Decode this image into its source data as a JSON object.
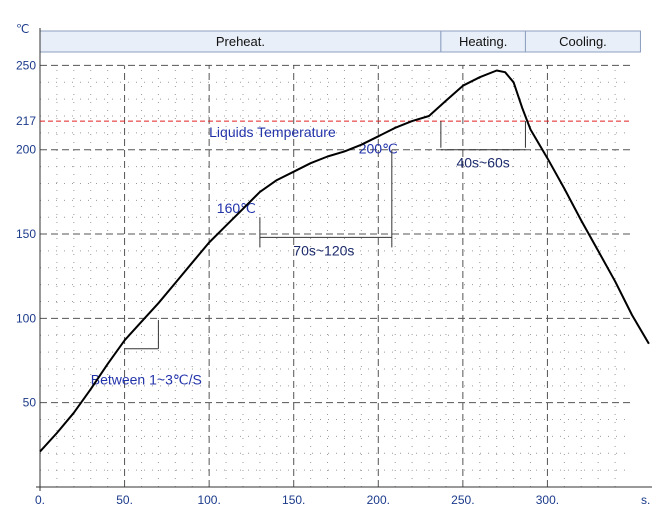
{
  "chart_data": {
    "type": "line",
    "title": "",
    "xlabel": "",
    "ylabel": "",
    "x_unit": "s.",
    "y_unit": "℃",
    "xlim": [
      0,
      360
    ],
    "ylim": [
      0,
      250
    ],
    "x_ticks": [
      {
        "value": 0,
        "label": "0."
      },
      {
        "value": 50,
        "label": "50."
      },
      {
        "value": 100,
        "label": "100."
      },
      {
        "value": 150,
        "label": "150."
      },
      {
        "value": 200,
        "label": "200."
      },
      {
        "value": 250,
        "label": "250."
      },
      {
        "value": 300,
        "label": "300."
      }
    ],
    "y_ticks": [
      {
        "value": 50,
        "label": "50"
      },
      {
        "value": 100,
        "label": "100"
      },
      {
        "value": 150,
        "label": "150"
      },
      {
        "value": 200,
        "label": "200"
      },
      {
        "value": 217,
        "label": "217"
      },
      {
        "value": 250,
        "label": "250"
      }
    ],
    "grid": true,
    "line_color": "#000000",
    "liquidus_color": "#e02020",
    "phases": [
      {
        "label": "Preheat.",
        "x_start": 0,
        "x_end": 237
      },
      {
        "label": "Heating.",
        "x_start": 237,
        "x_end": 287
      },
      {
        "label": "Cooling.",
        "x_start": 287,
        "x_end": 355
      }
    ],
    "liquidus": {
      "value": 217,
      "label": "Liquids Temperature"
    },
    "series": [
      {
        "x": [
          0,
          10,
          20,
          30,
          40,
          50,
          60,
          70,
          80,
          90,
          100,
          110,
          120,
          130,
          140,
          150,
          160,
          170,
          180,
          190,
          200,
          210,
          220,
          230,
          240,
          250,
          260,
          270,
          275,
          280,
          285,
          290,
          300,
          310,
          320,
          330,
          340,
          350,
          360
        ],
        "y": [
          21,
          32,
          44,
          58,
          73,
          87,
          98,
          109,
          121,
          133,
          145,
          155,
          165,
          175,
          182,
          187,
          192,
          196,
          199,
          203,
          208,
          213,
          217,
          220,
          229,
          238,
          243,
          247,
          246,
          240,
          225,
          212,
          195,
          177,
          158,
          140,
          122,
          102,
          85
        ]
      }
    ],
    "annotations": {
      "slope": {
        "text": "Between 1~3℃/S",
        "x1": 50,
        "y1": 82,
        "x2": 70,
        "y2": 99
      },
      "t160": {
        "text": "160℃",
        "x": 130,
        "y": 160
      },
      "t200": {
        "text": "200℃",
        "x": 208,
        "y": 200
      },
      "span_70_120": {
        "text": "70s~120s",
        "x_start": 130,
        "x_end": 208,
        "y": 148
      },
      "span_40_60": {
        "text": "40s~60s",
        "x_start": 237,
        "x_end": 287,
        "y": 200
      }
    }
  }
}
